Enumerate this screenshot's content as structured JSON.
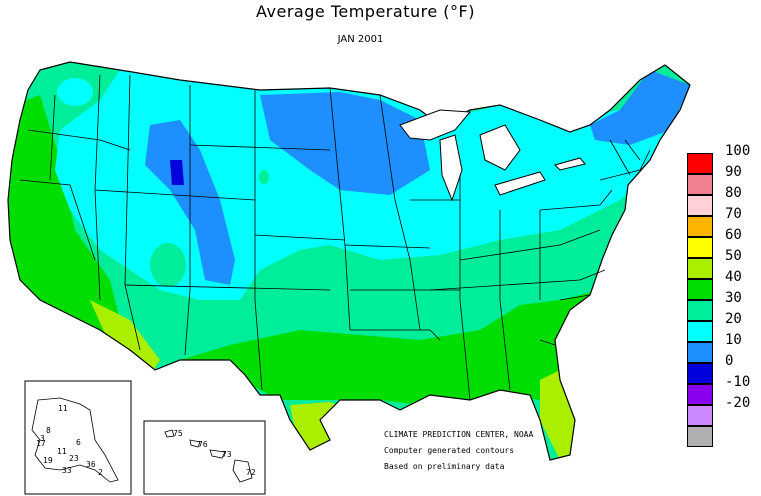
{
  "title": "Average Temperature (°F)",
  "subtitle": "JAN 2001",
  "legend": {
    "items": [
      {
        "label": "100",
        "color": "#ff0000"
      },
      {
        "label": "90",
        "color": "#f08090"
      },
      {
        "label": "80",
        "color": "#ffd0d8"
      },
      {
        "label": "70",
        "color": "#ffb400"
      },
      {
        "label": "60",
        "color": "#ffff00"
      },
      {
        "label": "50",
        "color": "#aaee00"
      },
      {
        "label": "40",
        "color": "#00dd00"
      },
      {
        "label": "30",
        "color": "#00ee99"
      },
      {
        "label": "20",
        "color": "#00ffff"
      },
      {
        "label": "10",
        "color": "#1e8fff"
      },
      {
        "label": "0",
        "color": "#0000dd"
      },
      {
        "label": "-10",
        "color": "#8800ee"
      },
      {
        "label": "-20",
        "color": "#cc88ff"
      },
      {
        "label": "",
        "color": "#b0b0b0"
      }
    ]
  },
  "notes": {
    "line1": "CLIMATE PREDICTION CENTER, NOAA",
    "line2": "Computer generated contours",
    "line3": "Based on preliminary data"
  },
  "alaska_labels": [
    "11",
    "8",
    "3",
    "17",
    "11",
    "6",
    "19",
    "23",
    "33",
    "36",
    "2"
  ],
  "hawaii_labels": [
    "75",
    "76",
    "73",
    "72"
  ]
}
